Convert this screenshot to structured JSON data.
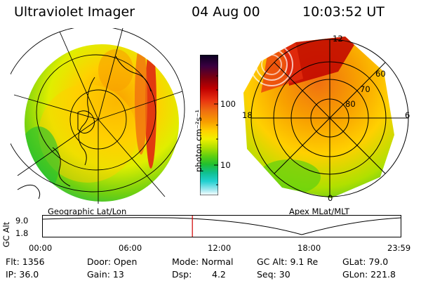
{
  "header": {
    "instrument": "Ultraviolet Imager",
    "date": "04 Aug 00",
    "time": "10:03:52 UT"
  },
  "left_panel": {
    "label": "Geographic Lat/Lon"
  },
  "right_panel": {
    "label": "Apex MLat/MLT",
    "mlt_labels": [
      "12",
      "18",
      "6",
      "0"
    ],
    "lat_labels": [
      "60",
      "70",
      "80"
    ]
  },
  "colorbar": {
    "unit_label": "photon cm⁻²s⁻¹",
    "ticks": [
      "100",
      "10"
    ],
    "scale": "log",
    "colors": [
      "#0a0020",
      "#3a0040",
      "#7a0010",
      "#c00000",
      "#e83010",
      "#f07010",
      "#f8a000",
      "#ffd000",
      "#f0f000",
      "#b0e000",
      "#60d010",
      "#20c030",
      "#10c090",
      "#20d0d0",
      "#a0e8f0",
      "#ffffff"
    ]
  },
  "timeline": {
    "axis_label": "GC Alt",
    "y_ticks": [
      "9.0",
      "1.8"
    ],
    "x_ticks": [
      "00:00",
      "06:00",
      "12:00",
      "18:00",
      "23:59"
    ],
    "current_time_fraction": 0.418,
    "marker_color": "#d00000"
  },
  "status": {
    "flt": "Flt: 1356",
    "ip": "IP: 36.0",
    "door": "Door: Open",
    "gain": "Gain: 13",
    "mode": "Mode: Normal",
    "dsp_label": "Dsp:",
    "dsp_value": "4.2",
    "gc_alt": "GC Alt: 9.1 Re",
    "seq": "Seq: 30",
    "glat": "GLat: 79.0",
    "glon": "GLon: 221.8"
  }
}
